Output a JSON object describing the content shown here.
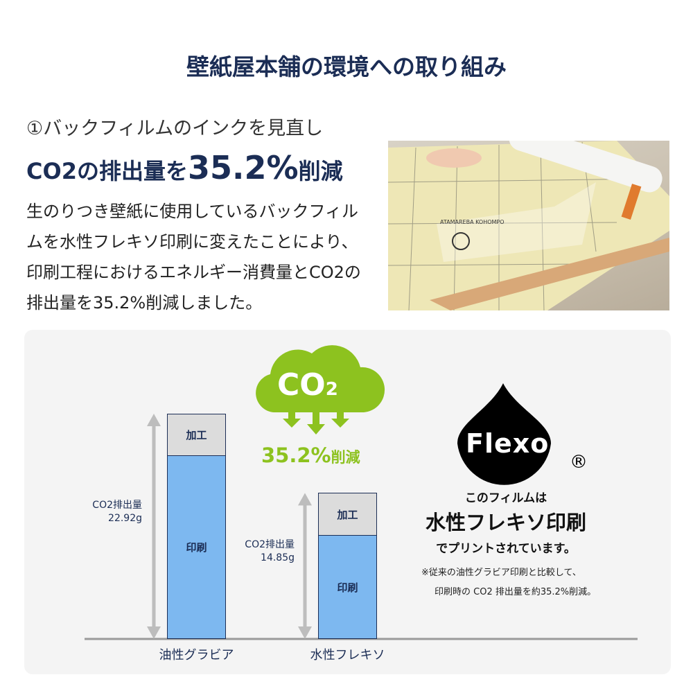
{
  "title": "壁紙屋本舗の環境への取り組み",
  "section": {
    "heading_line1": "①バックフィルムのインクを見直し",
    "heading_line2_prefix": "CO2の排出量を",
    "heading_line2_value": "35.2%",
    "heading_line2_suffix": "削減",
    "description": "生のりつき壁紙に使用しているバックフィルムを水性フレキソ印刷に変えたことにより、印刷工程におけるエネルギー消費量とCO2の排出量を35.2%削減しました。"
  },
  "photo": {
    "film_text": "ATAMAREBA KOHOMPO"
  },
  "cloud": {
    "co2_label": "CO",
    "co2_sub": "2",
    "reduction": "35.2%",
    "reduction_suffix": "削減"
  },
  "flexo": {
    "logo": "Flexo",
    "registered": "®",
    "line1": "このフィルムは",
    "line2": "水性フレキソ印刷",
    "line3": "でプリントされています。",
    "note1": "※従来の油性グラビア印刷と比較して、",
    "note2": "印刷時の CO2 排出量を約35.2%削減。"
  },
  "colors": {
    "navy": "#1b2d55",
    "green": "#8dc21f",
    "print_blue": "#7db8f0",
    "process_gray": "#dcdcdc"
  },
  "chart_data": {
    "type": "bar",
    "stacked": true,
    "categories": [
      "油性グラビア",
      "水性フレキソ"
    ],
    "series": [
      {
        "name": "印刷",
        "values": [
          18.7,
          10.55
        ]
      },
      {
        "name": "加工",
        "values": [
          4.22,
          4.3
        ]
      }
    ],
    "totals": [
      22.92,
      14.85
    ],
    "total_labels": [
      {
        "label": "CO2排出量",
        "value": "22.92g"
      },
      {
        "label": "CO2排出量",
        "value": "14.85g"
      }
    ],
    "ylim": [
      0,
      22.92
    ]
  }
}
